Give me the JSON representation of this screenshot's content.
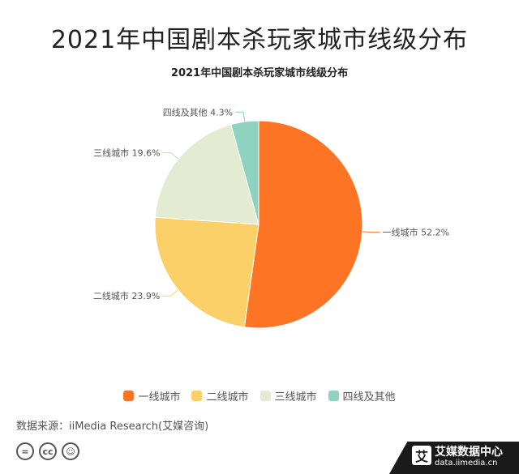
{
  "header": {
    "main_title": "2021年中国剧本杀玩家城市线级分布"
  },
  "chart_data": {
    "type": "pie",
    "title": "2021年中国剧本杀玩家城市线级分布",
    "slices": [
      {
        "label": "一线城市",
        "value": 52.2,
        "display": "一线城市 52.2%",
        "color": "#fd7524"
      },
      {
        "label": "二线城市",
        "value": 23.9,
        "display": "二线城市 23.9%",
        "color": "#fbd068"
      },
      {
        "label": "三线城市",
        "value": 19.6,
        "display": "三线城市 19.6%",
        "color": "#e3ecd3"
      },
      {
        "label": "四线及其他",
        "value": 4.3,
        "display": "四线及其他 4.3%",
        "color": "#8dd3c0"
      }
    ],
    "legend_position": "bottom"
  },
  "legend": {
    "items": [
      {
        "label": "一线城市",
        "color": "#fd7524"
      },
      {
        "label": "二线城市",
        "color": "#fbd068"
      },
      {
        "label": "三线城市",
        "color": "#e3ecd3"
      },
      {
        "label": "四线及其他",
        "color": "#8dd3c0"
      }
    ]
  },
  "footer": {
    "source": "数据来源：iiMedia Research(艾媒咨询)",
    "cc_icons": [
      {
        "name": "equals-icon",
        "glyph": "="
      },
      {
        "name": "cc-icon",
        "glyph": "cc"
      },
      {
        "name": "person-icon",
        "glyph": "☺"
      }
    ]
  },
  "brand": {
    "mark": "艾",
    "name": "艾媒数据中心",
    "url": "data.iimedia.cn"
  }
}
